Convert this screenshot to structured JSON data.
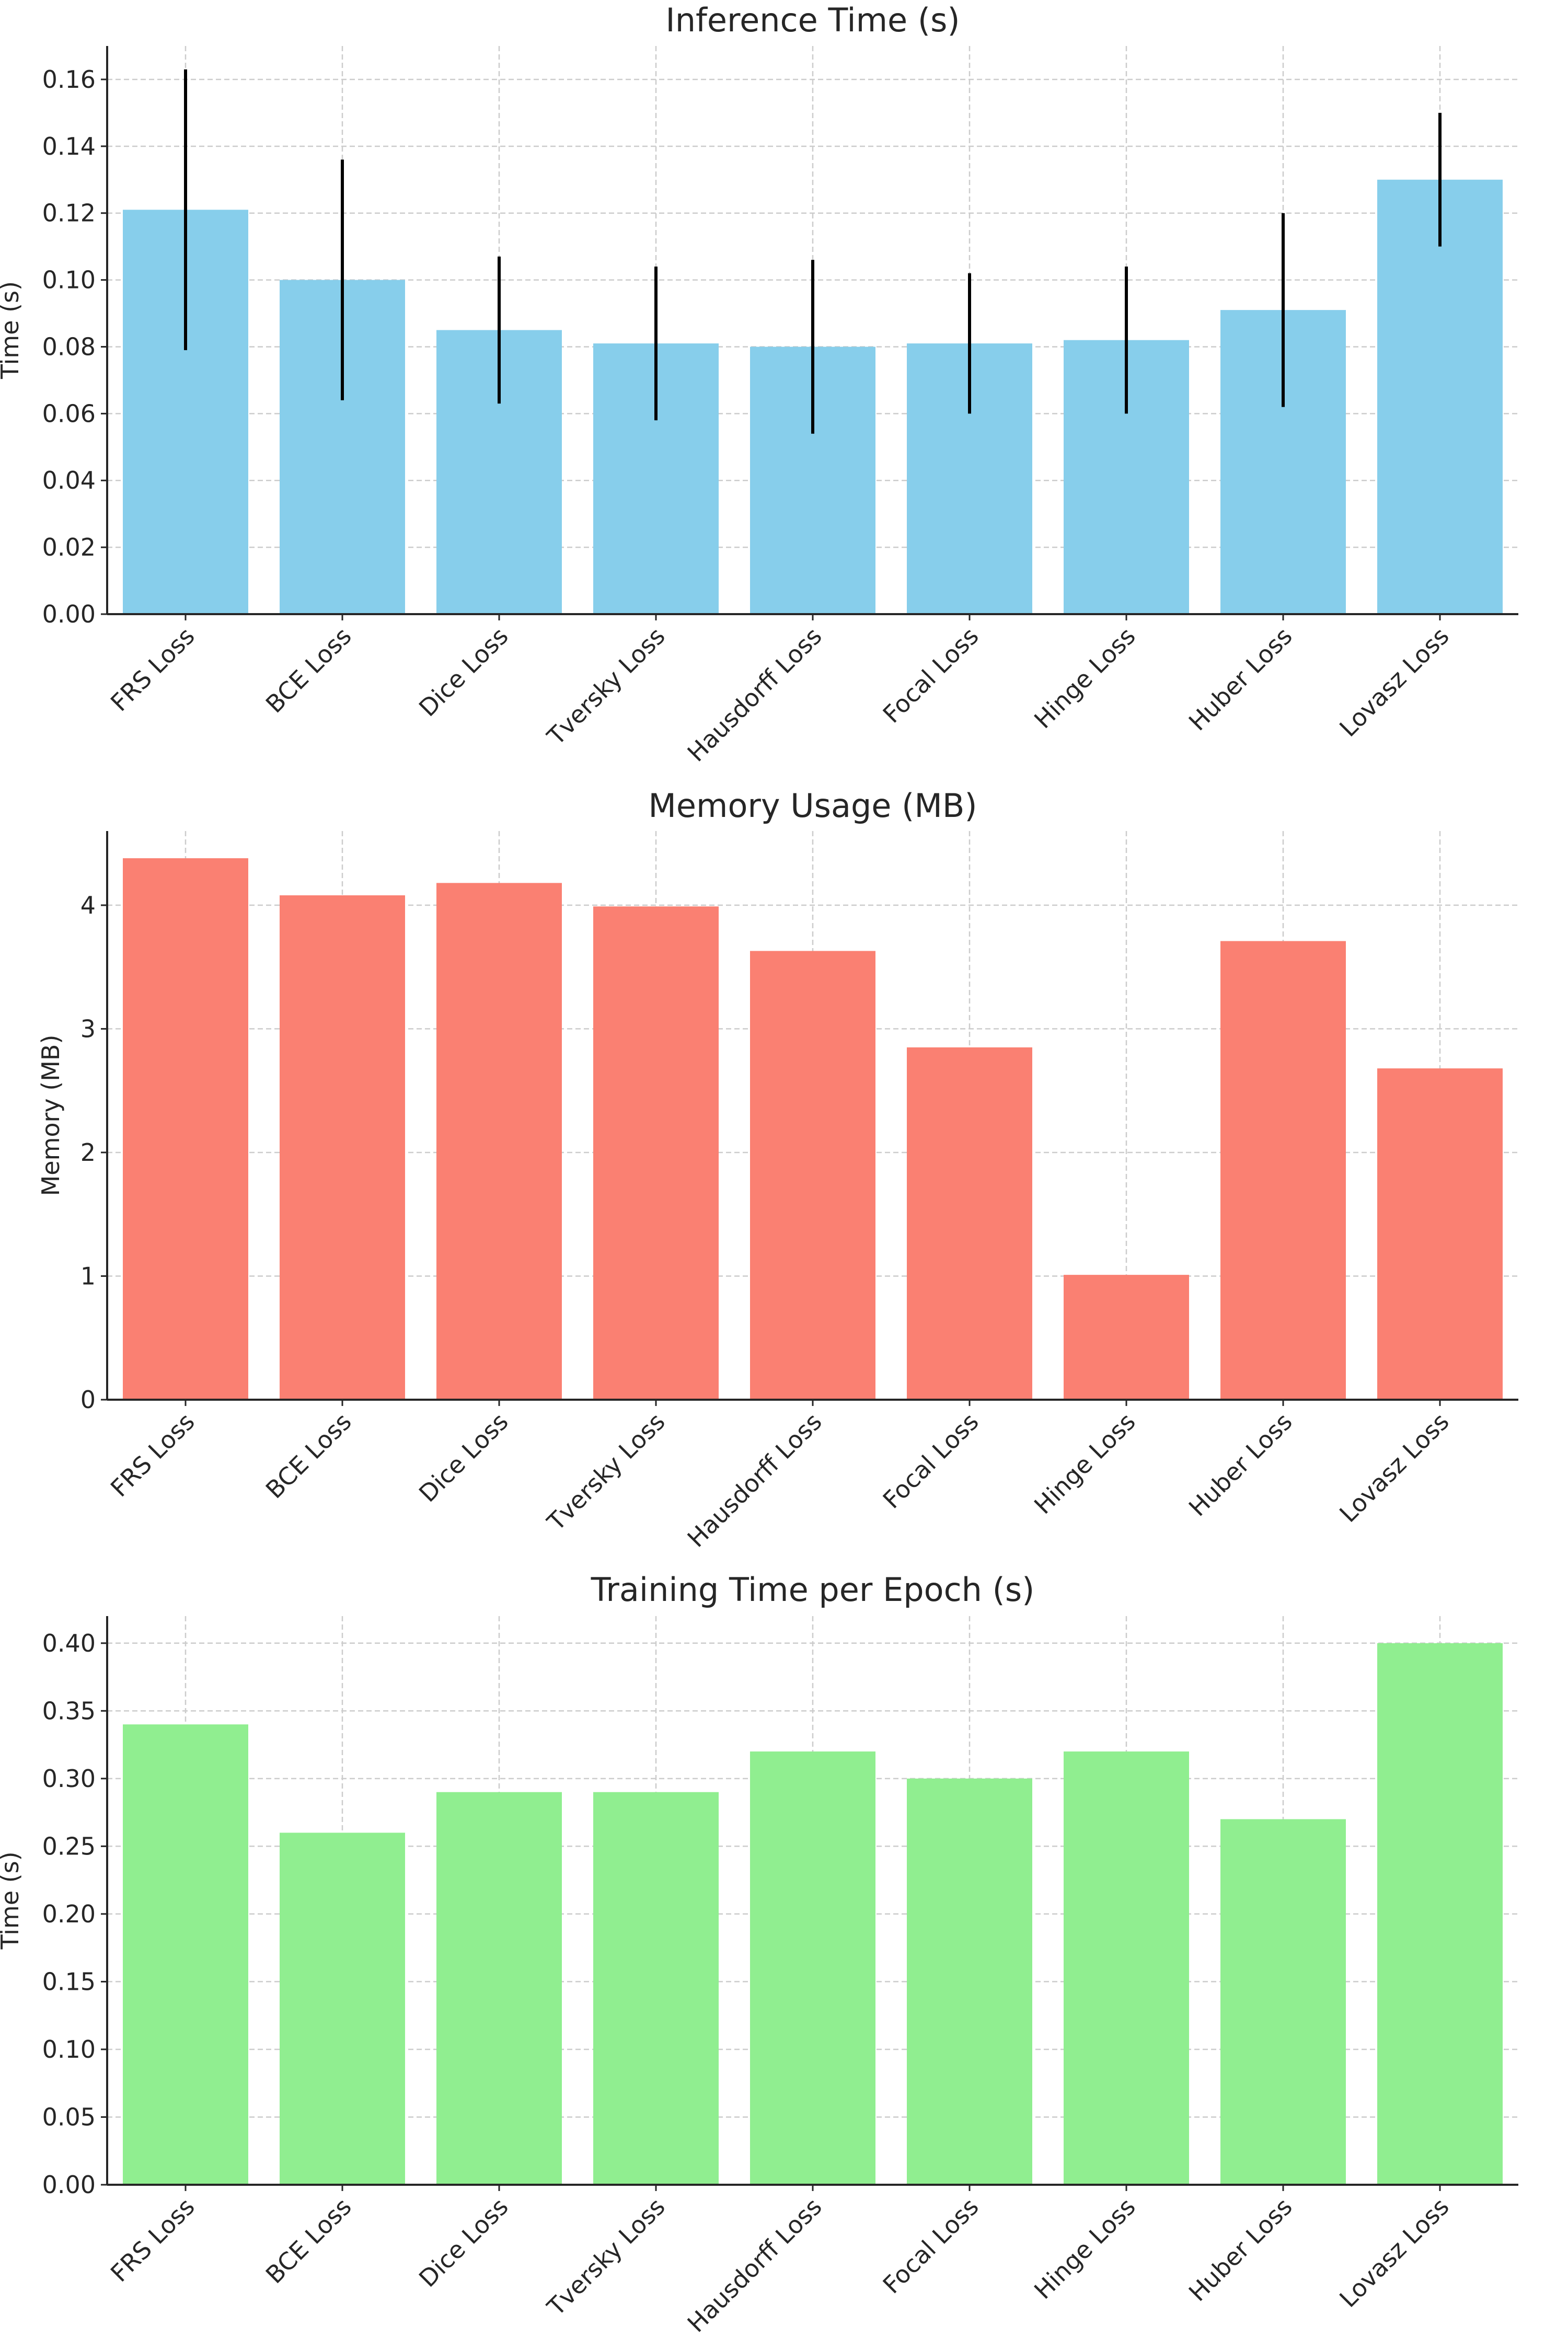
{
  "chart_data": [
    {
      "type": "bar",
      "title": "Inference Time (s)",
      "xlabel": "",
      "ylabel": "Time (s)",
      "categories": [
        "FRS Loss",
        "BCE Loss",
        "Dice Loss",
        "Tversky Loss",
        "Hausdorff Loss",
        "Focal Loss",
        "Hinge Loss",
        "Huber Loss",
        "Lovasz Loss"
      ],
      "values": [
        0.121,
        0.1,
        0.085,
        0.081,
        0.08,
        0.081,
        0.082,
        0.091,
        0.13
      ],
      "error": [
        0.042,
        0.036,
        0.022,
        0.023,
        0.026,
        0.021,
        0.022,
        0.029,
        0.02
      ],
      "ylim": [
        0,
        0.17
      ],
      "yticks": [
        0,
        0.02,
        0.04,
        0.06,
        0.08,
        0.1,
        0.12,
        0.14,
        0.16
      ],
      "ytick_labels": [
        "0.00",
        "0.02",
        "0.04",
        "0.06",
        "0.08",
        "0.10",
        "0.12",
        "0.14",
        "0.16"
      ],
      "color": "#87CEEB",
      "grid": true
    },
    {
      "type": "bar",
      "title": "Memory Usage (MB)",
      "xlabel": "",
      "ylabel": "Memory (MB)",
      "categories": [
        "FRS Loss",
        "BCE Loss",
        "Dice Loss",
        "Tversky Loss",
        "Hausdorff Loss",
        "Focal Loss",
        "Hinge Loss",
        "Huber Loss",
        "Lovasz Loss"
      ],
      "values": [
        4.38,
        4.08,
        4.18,
        3.99,
        3.63,
        2.85,
        1.01,
        3.71,
        2.68
      ],
      "ylim": [
        0,
        4.6
      ],
      "yticks": [
        0,
        1,
        2,
        3,
        4
      ],
      "ytick_labels": [
        "0",
        "1",
        "2",
        "3",
        "4"
      ],
      "color": "#FA8072",
      "grid": true
    },
    {
      "type": "bar",
      "title": "Training Time per Epoch (s)",
      "xlabel": "",
      "ylabel": "Time (s)",
      "categories": [
        "FRS Loss",
        "BCE Loss",
        "Dice Loss",
        "Tversky Loss",
        "Hausdorff Loss",
        "Focal Loss",
        "Hinge Loss",
        "Huber Loss",
        "Lovasz Loss"
      ],
      "values": [
        0.34,
        0.26,
        0.29,
        0.29,
        0.32,
        0.3,
        0.32,
        0.27,
        0.4
      ],
      "ylim": [
        0,
        0.42
      ],
      "yticks": [
        0,
        0.05,
        0.1,
        0.15,
        0.2,
        0.25,
        0.3,
        0.35,
        0.4
      ],
      "ytick_labels": [
        "0.00",
        "0.05",
        "0.10",
        "0.15",
        "0.20",
        "0.25",
        "0.30",
        "0.35",
        "0.40"
      ],
      "color": "#90EE90",
      "grid": true
    }
  ]
}
